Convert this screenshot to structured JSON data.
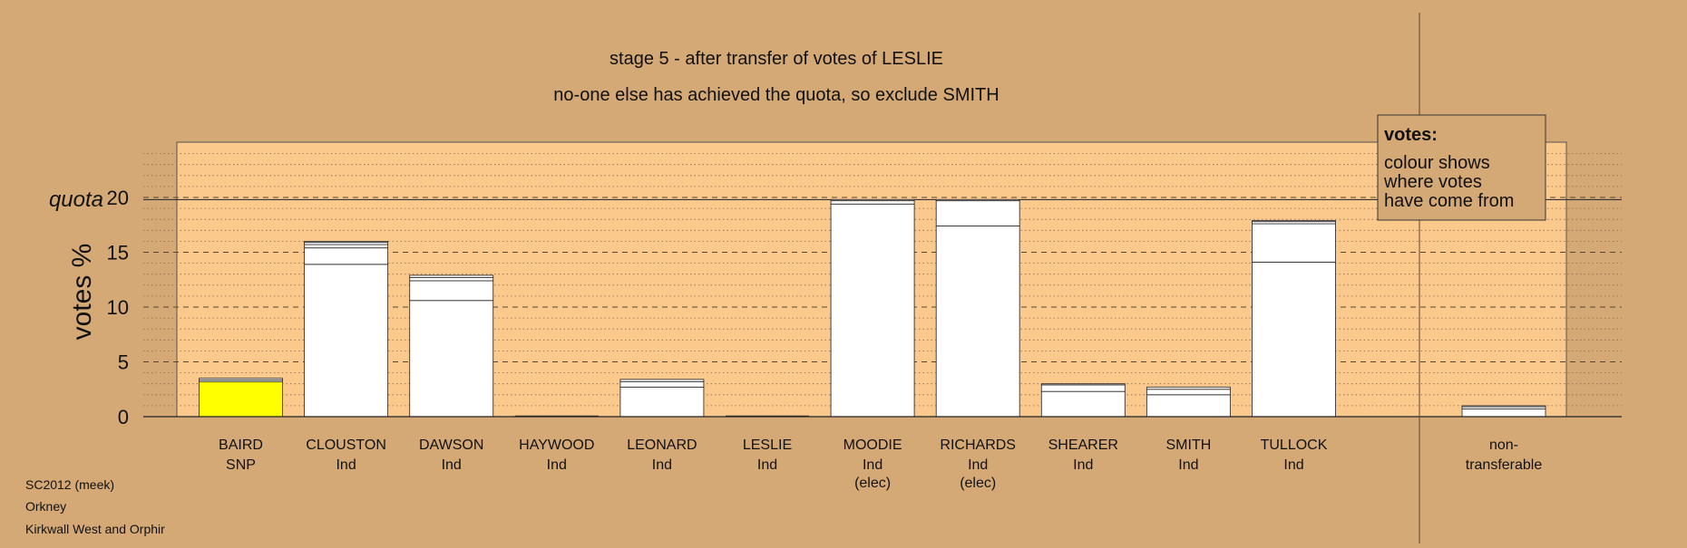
{
  "chart_data": {
    "type": "bar",
    "title": "stage 5 - after transfer of votes of LESLIE",
    "subtitle": "no-one else has achieved the quota, so exclude SMITH",
    "ylabel": "votes %",
    "ylim": [
      0,
      25
    ],
    "yticks": [
      0,
      5,
      10,
      15,
      20
    ],
    "grid": true,
    "quota": {
      "label": "quota",
      "value": 19.8
    },
    "legend": {
      "title": "votes:",
      "lines": [
        "colour shows",
        "where votes",
        "have come from"
      ],
      "placement": "top-right"
    },
    "colors": {
      "background": "#d4a976",
      "plot_area": "#fcc98c",
      "bar": "#ffffff",
      "highlight": "#ffff00",
      "outline": "#333333"
    },
    "categories": [
      {
        "name": "BAIRD",
        "party": "SNP",
        "elected": "",
        "highlight": true,
        "segments": [
          3.2,
          0.15,
          0.15
        ]
      },
      {
        "name": "CLOUSTON",
        "party": "Ind",
        "elected": "",
        "highlight": false,
        "segments": [
          13.9,
          1.5,
          0.3,
          0.2,
          0.1
        ]
      },
      {
        "name": "DAWSON",
        "party": "Ind",
        "elected": "",
        "highlight": false,
        "segments": [
          10.6,
          1.8,
          0.3,
          0.2
        ]
      },
      {
        "name": "HAYWOOD",
        "party": "Ind",
        "elected": "",
        "highlight": false,
        "segments": [
          0
        ]
      },
      {
        "name": "LEONARD",
        "party": "Ind",
        "elected": "",
        "highlight": false,
        "segments": [
          2.7,
          0.5,
          0.2
        ]
      },
      {
        "name": "LESLIE",
        "party": "Ind",
        "elected": "",
        "highlight": false,
        "segments": [
          0
        ]
      },
      {
        "name": "MOODIE",
        "party": "Ind",
        "elected": "(elec)",
        "highlight": false,
        "segments": [
          19.4,
          0.3,
          0.1
        ]
      },
      {
        "name": "RICHARDS",
        "party": "Ind",
        "elected": "(elec)",
        "highlight": false,
        "segments": [
          17.4,
          2.3,
          0.1
        ]
      },
      {
        "name": "SHEARER",
        "party": "Ind",
        "elected": "",
        "highlight": false,
        "segments": [
          2.3,
          0.6,
          0.1
        ]
      },
      {
        "name": "SMITH",
        "party": "Ind",
        "elected": "",
        "highlight": false,
        "segments": [
          2.0,
          0.5,
          0.2
        ]
      },
      {
        "name": "TULLOCK",
        "party": "Ind",
        "elected": "",
        "highlight": false,
        "segments": [
          14.1,
          3.5,
          0.2,
          0.1
        ]
      }
    ],
    "non_transferable": {
      "label_1": "non-",
      "label_2": "transferable",
      "segments": [
        0.7,
        0.2,
        0.1
      ]
    }
  },
  "footer": {
    "line1": "SC2012 (meek)",
    "line2": "Orkney",
    "line3": "Kirkwall West and Orphir"
  }
}
